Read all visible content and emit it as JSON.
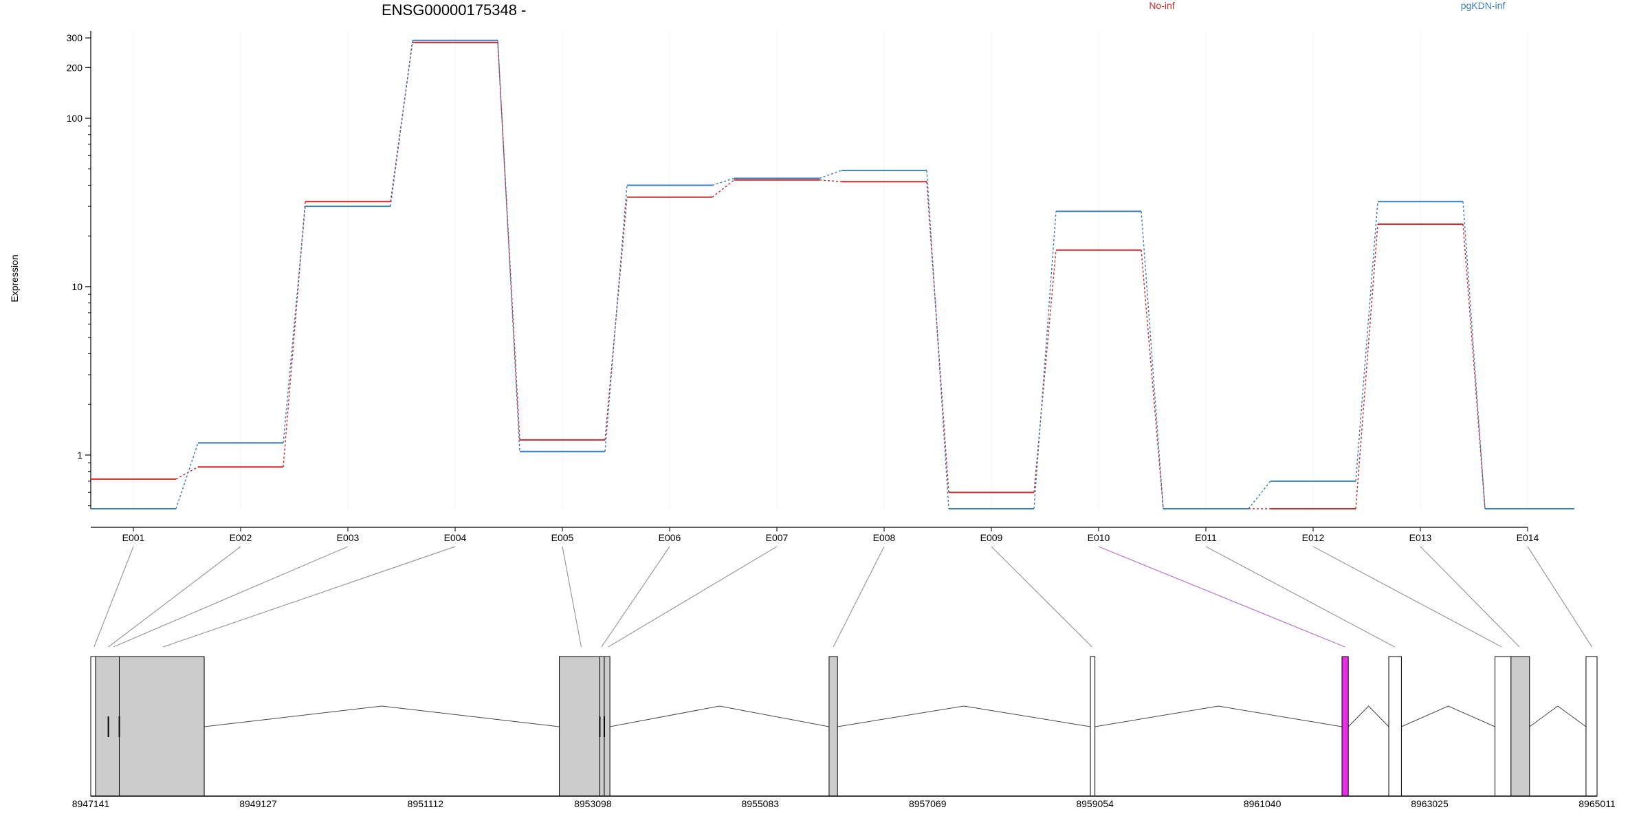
{
  "chart_data": {
    "type": "line",
    "title": "ENSG00000175348 -",
    "ylabel": "Expression",
    "xlabel": "",
    "y_scale": "log",
    "ylim": [
      0.48,
      330
    ],
    "y_ticks": [
      1,
      10,
      100,
      200,
      300
    ],
    "grid": "vertical-faint",
    "categories": [
      "E001",
      "E002",
      "E003",
      "E004",
      "E005",
      "E006",
      "E007",
      "E008",
      "E009",
      "E010",
      "E011",
      "E012",
      "E013",
      "E014"
    ],
    "series": [
      {
        "name": "No-inf",
        "color": "#d62728",
        "values": [
          0.72,
          0.85,
          32,
          282,
          1.23,
          34,
          43,
          42,
          0.6,
          16.5,
          0.48,
          0.48,
          23.5,
          0.48
        ]
      },
      {
        "name": "pgKDN-inf",
        "color": "#3a7fc1",
        "values": [
          0.48,
          1.18,
          30,
          290,
          1.05,
          40,
          44,
          49,
          0.48,
          28,
          0.48,
          0.7,
          32,
          0.48
        ]
      }
    ],
    "legend": {
      "placement": "top",
      "entries": [
        "No-inf",
        "pgKDN-inf"
      ]
    },
    "highlight_exon": "E010",
    "highlight_color": "#e62ee6",
    "gene_model": {
      "coordinate_range": [
        8947141,
        8965011
      ],
      "axis_ticks": [
        8947141,
        8949127,
        8951112,
        8953098,
        8955083,
        8957069,
        8959054,
        8961040,
        8963025,
        8965011
      ],
      "feature_color": "#cccccc",
      "exon_blocks": [
        {
          "start": 8947141,
          "end": 8947200,
          "fill": "none"
        },
        {
          "start": 8947200,
          "end": 8947480,
          "fill": "gray"
        },
        {
          "start": 8947480,
          "end": 8948487,
          "fill": "gray"
        },
        {
          "start": 8952700,
          "end": 8953180,
          "fill": "gray"
        },
        {
          "start": 8953180,
          "end": 8953233,
          "fill": "gray"
        },
        {
          "start": 8953233,
          "end": 8953300,
          "fill": "gray"
        },
        {
          "start": 8955900,
          "end": 8956000,
          "fill": "gray"
        },
        {
          "start": 8959000,
          "end": 8959054,
          "fill": "none"
        },
        {
          "start": 8961985,
          "end": 8962060,
          "fill": "magenta"
        },
        {
          "start": 8962540,
          "end": 8962690,
          "fill": "none"
        },
        {
          "start": 8963800,
          "end": 8963990,
          "fill": "none"
        },
        {
          "start": 8963990,
          "end": 8964210,
          "fill": "gray"
        },
        {
          "start": 8964880,
          "end": 8965011,
          "fill": "none"
        }
      ],
      "exon_inner_marks": [
        8947350,
        8947480,
        8953180,
        8953233
      ],
      "introns": [
        {
          "start": 8948487,
          "end": 8952700
        },
        {
          "start": 8953300,
          "end": 8955900
        },
        {
          "start": 8956000,
          "end": 8959000
        },
        {
          "start": 8959054,
          "end": 8961985
        },
        {
          "start": 8962060,
          "end": 8962540
        },
        {
          "start": 8962690,
          "end": 8963800
        },
        {
          "start": 8964210,
          "end": 8964880
        }
      ],
      "exon_positions": [
        8947180,
        8947350,
        8947410,
        8948000,
        8952960,
        8953200,
        8953280,
        8955950,
        8959020,
        8962020,
        8962610,
        8963880,
        8964090,
        8964950
      ]
    }
  }
}
